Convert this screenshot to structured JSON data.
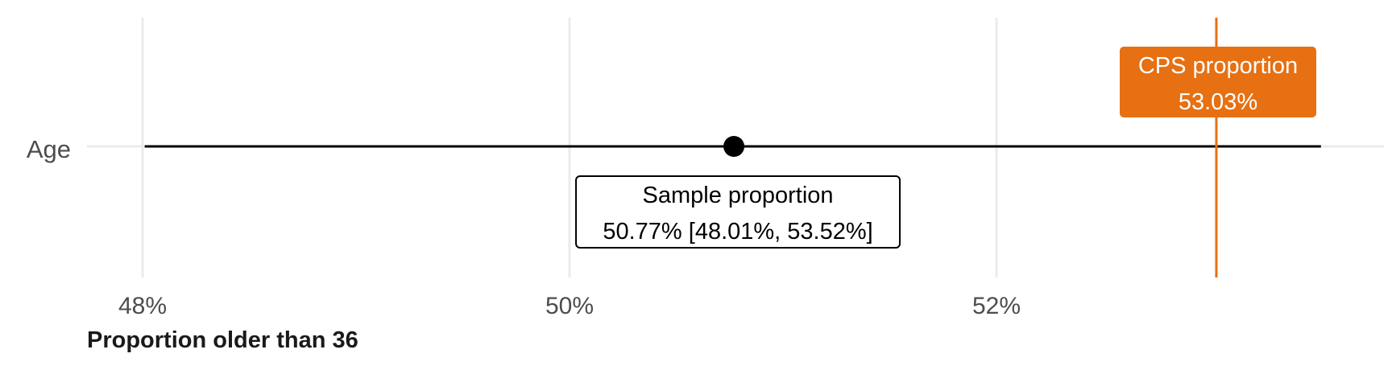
{
  "chart_data": {
    "type": "scatter",
    "title": "",
    "xlabel": "Proportion older than 36",
    "ylabel": "",
    "xlim": [
      47.95,
      54.0
    ],
    "x_ticks": [
      48,
      50,
      52
    ],
    "x_tick_labels": [
      "48%",
      "50%",
      "52%"
    ],
    "categories": [
      "Age"
    ],
    "grid": true,
    "estimate": {
      "category": "Age",
      "value": 50.77,
      "ci_low": 48.01,
      "ci_high": 53.52,
      "label_line1": "Sample proportion",
      "label_line2": "50.77% [48.01%, 53.52%]"
    },
    "reference": {
      "value": 53.03,
      "label_line1": "CPS proportion",
      "label_line2": "53.03%",
      "color": "#e67012"
    }
  }
}
